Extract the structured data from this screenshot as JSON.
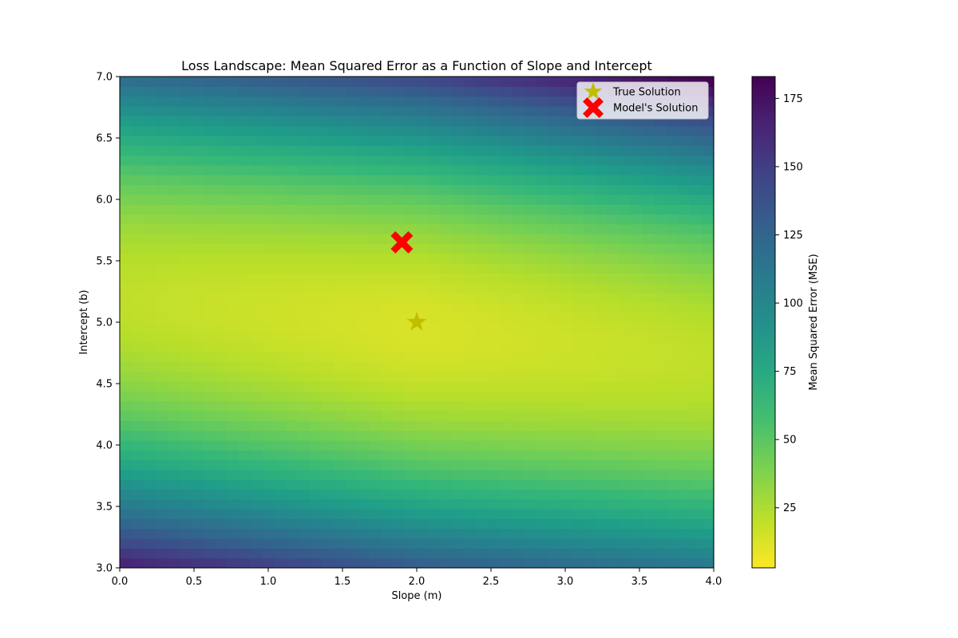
{
  "chart_data": {
    "type": "heatmap",
    "title": "Loss Landscape: Mean Squared Error as a Function of Slope and Intercept",
    "xlabel": "Slope (m)",
    "ylabel": "Intercept (b)",
    "xlim": [
      0.0,
      4.0
    ],
    "ylim": [
      3.0,
      7.0
    ],
    "x_ticks": [
      "0.0",
      "0.5",
      "1.0",
      "1.5",
      "2.0",
      "2.5",
      "3.0",
      "3.5",
      "4.0"
    ],
    "y_ticks": [
      "3.0",
      "3.5",
      "4.0",
      "4.5",
      "5.0",
      "5.5",
      "6.0",
      "6.5",
      "7.0"
    ],
    "grid": false,
    "grid_resolution": [
      50,
      50
    ],
    "colormap": "viridis_r",
    "colorbar": {
      "label": "Mean Squared Error (MSE)",
      "range": [
        3,
        183
      ],
      "ticks": [
        "25",
        "50",
        "75",
        "100",
        "125",
        "150",
        "175"
      ]
    },
    "surface_samples": [
      {
        "m": 0.0,
        "b": 3.0,
        "mse": 183
      },
      {
        "m": 4.0,
        "b": 3.0,
        "mse": 105
      },
      {
        "m": 0.0,
        "b": 7.0,
        "mse": 95
      },
      {
        "m": 4.0,
        "b": 7.0,
        "mse": 175
      },
      {
        "m": 0.0,
        "b": 5.2,
        "mse": 10
      },
      {
        "m": 2.0,
        "b": 5.0,
        "mse": 3
      },
      {
        "m": 4.0,
        "b": 4.7,
        "mse": 10
      }
    ],
    "markers": [
      {
        "name": "True Solution",
        "x": 2.0,
        "y": 5.0,
        "shape": "star",
        "color": "#bfbf00"
      },
      {
        "name": "Model's Solution",
        "x": 1.9,
        "y": 5.65,
        "shape": "X",
        "color": "#ff0000"
      }
    ],
    "legend": {
      "placement": "top-right",
      "entries": [
        "True Solution",
        "Model's Solution"
      ]
    }
  }
}
